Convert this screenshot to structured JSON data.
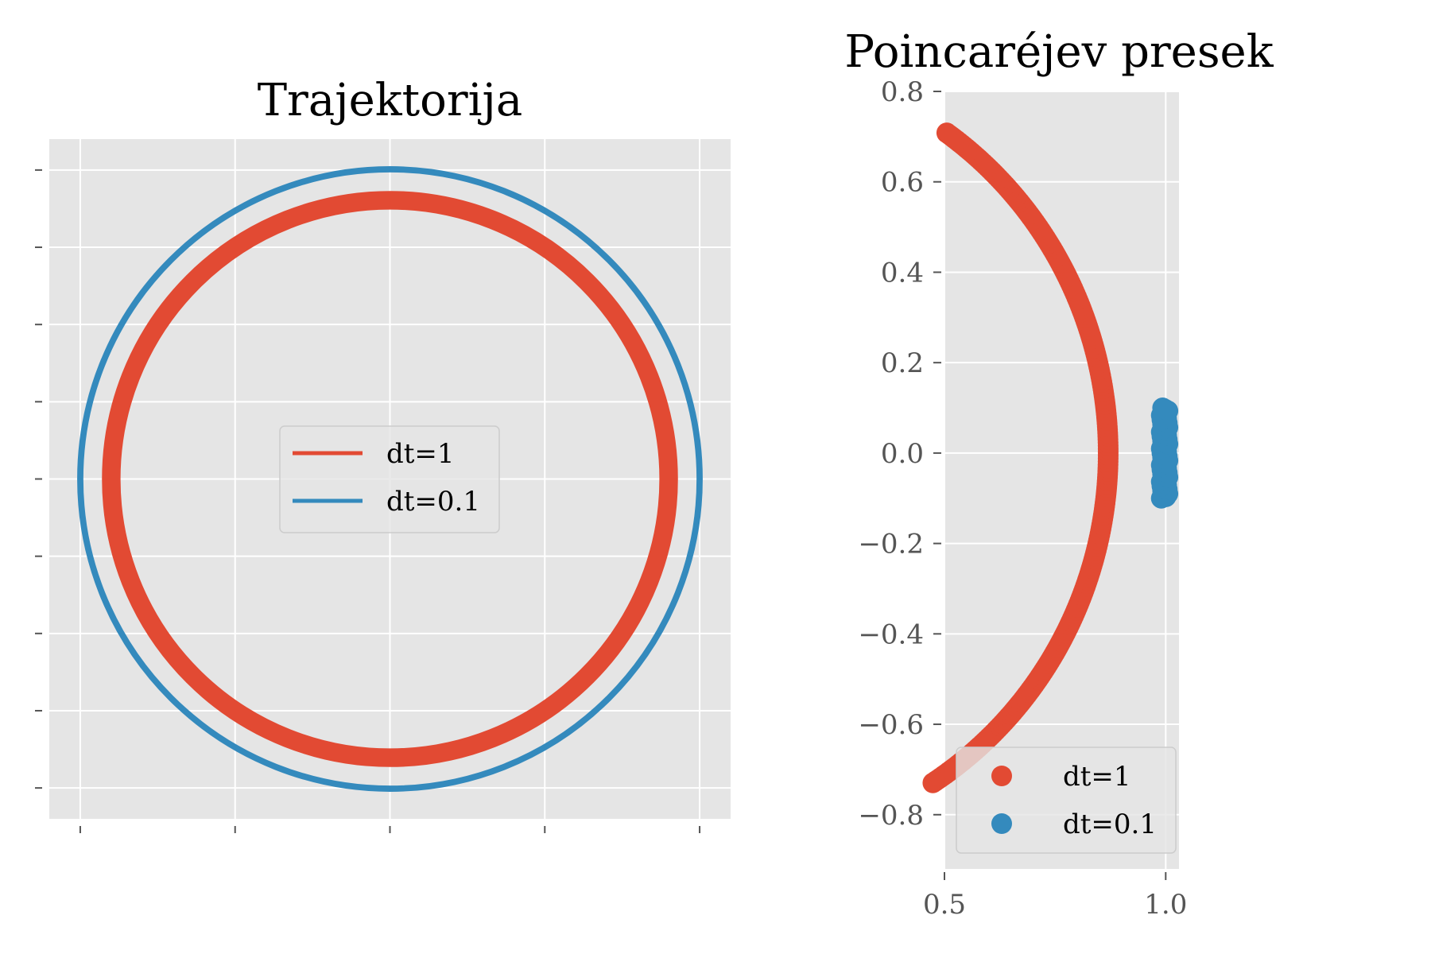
{
  "colors": {
    "series1": "#E24A33",
    "series2": "#348ABD",
    "axes_bg": "#E5E5E5",
    "grid": "#FFFFFF",
    "tick": "#555555"
  },
  "chart_data": [
    {
      "type": "line",
      "title": "Trajektorija",
      "xlabel": "",
      "ylabel": "",
      "xlim": [
        -1.1,
        1.1
      ],
      "ylim": [
        -1.1,
        1.1
      ],
      "x_ticks": [
        -1.0,
        -0.5,
        0.0,
        0.5,
        1.0
      ],
      "y_ticks": [
        -1.0,
        -0.75,
        -0.5,
        -0.25,
        0.0,
        0.25,
        0.5,
        0.75,
        1.0
      ],
      "tick_labels_visible": false,
      "grid": true,
      "legend": "center",
      "aspect": "equal",
      "series": [
        {
          "name": "dt=1",
          "shape": "annulus",
          "r_inner": 0.87,
          "r_outer": 0.93
        },
        {
          "name": "dt=0.1",
          "shape": "annulus",
          "r_inner": 0.99,
          "r_outer": 1.01
        }
      ]
    },
    {
      "type": "scatter",
      "title": "Poincaréjev presek",
      "xlabel": "",
      "ylabel": "",
      "xlim": [
        0.5,
        1.03
      ],
      "ylim": [
        -0.92,
        0.8
      ],
      "x_ticks": [
        0.5,
        1.0
      ],
      "x_tick_labels": [
        "0.5",
        "1.0"
      ],
      "y_ticks": [
        0.8,
        0.6,
        0.4,
        0.2,
        0.0,
        -0.2,
        -0.4,
        -0.6,
        -0.8
      ],
      "y_tick_labels": [
        "0.8",
        "0.6",
        "0.4",
        "0.2",
        "0.0",
        "−0.2",
        "−0.4",
        "−0.6",
        "−0.8"
      ],
      "grid": true,
      "legend": "lower right",
      "series": [
        {
          "name": "dt=1",
          "shape": "arc",
          "radius": 0.87,
          "angle_from_deg": -57,
          "angle_to_deg": 54.5
        },
        {
          "name": "dt=0.1",
          "shape": "segment",
          "x": [
            0.99,
            1.005
          ],
          "y_range": [
            -0.1,
            0.1
          ]
        }
      ]
    }
  ]
}
